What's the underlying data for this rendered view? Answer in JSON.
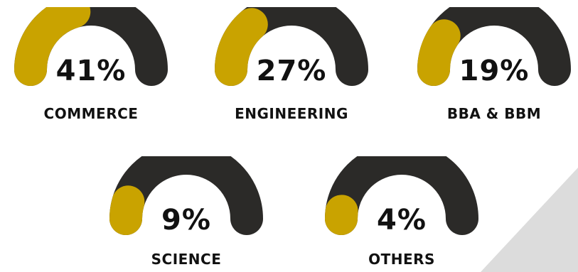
{
  "colors": {
    "track": "#2b2a28",
    "fill": "#c9a300",
    "background_accent": "#dcdcdc"
  },
  "chart_data": {
    "type": "gauge",
    "categories": [
      "COMMERCE",
      "ENGINEERING",
      "BBA & BBM",
      "SCIENCE",
      "OTHERS"
    ],
    "values": [
      41,
      27,
      19,
      9,
      4
    ],
    "value_labels": [
      "41%",
      "27%",
      "19%",
      "9%",
      "4%"
    ],
    "unit": "%"
  }
}
